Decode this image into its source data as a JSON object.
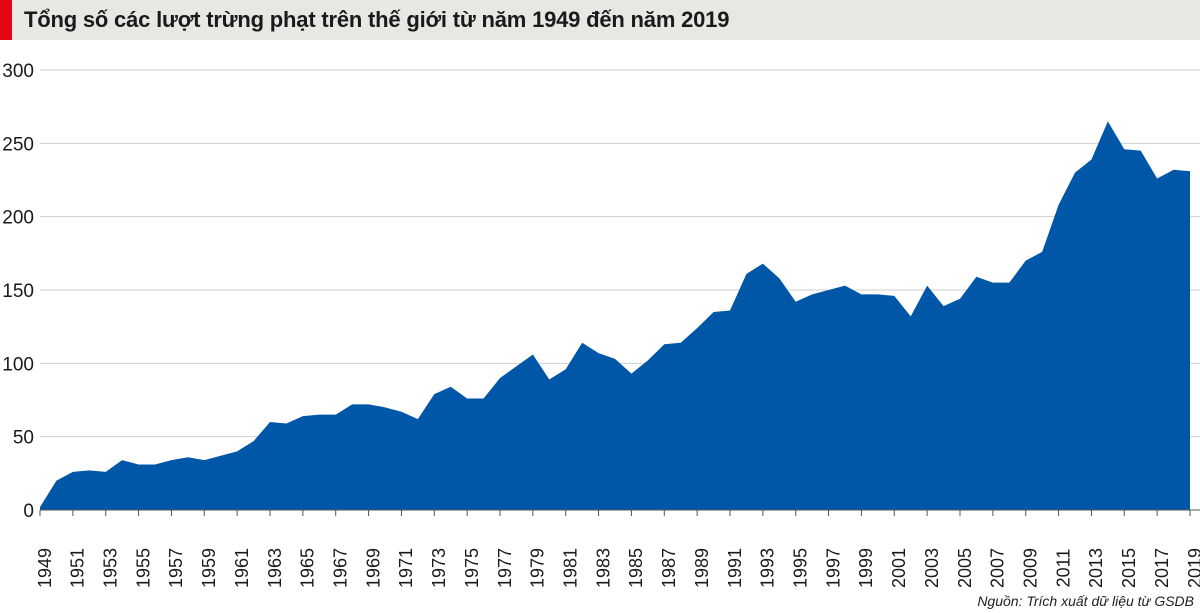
{
  "header": {
    "title": "Tổng số các lượt trừng phạt trên thế giới từ năm 1949 đến năm 2019"
  },
  "footer": {
    "source": "Nguồn: Trích xuất dữ liệu từ GSDB"
  },
  "colors": {
    "area_fill": "#0057a8",
    "title_accent": "#e30613",
    "title_background": "#e9e7e4",
    "gridline": "#cfcfcf"
  },
  "chart_data": {
    "type": "area",
    "title": "Tổng số các lượt trừng phạt trên thế giới từ năm 1949 đến năm 2019",
    "xlabel": "",
    "ylabel": "",
    "ylim": [
      0,
      300
    ],
    "yticks": [
      0,
      50,
      100,
      150,
      200,
      250,
      300
    ],
    "xlim": [
      1949,
      2019
    ],
    "xticks": [
      1949,
      1951,
      1953,
      1955,
      1957,
      1959,
      1961,
      1963,
      1965,
      1967,
      1969,
      1971,
      1973,
      1975,
      1977,
      1979,
      1981,
      1983,
      1985,
      1987,
      1989,
      1991,
      1993,
      1995,
      1997,
      1999,
      2001,
      2003,
      2005,
      2007,
      2009,
      2011,
      2013,
      2015,
      2017,
      2019
    ],
    "grid": "horizontal",
    "x": [
      1949,
      1950,
      1951,
      1952,
      1953,
      1954,
      1955,
      1956,
      1957,
      1958,
      1959,
      1960,
      1961,
      1962,
      1963,
      1964,
      1965,
      1966,
      1967,
      1968,
      1969,
      1970,
      1971,
      1972,
      1973,
      1974,
      1975,
      1976,
      1977,
      1978,
      1979,
      1980,
      1981,
      1982,
      1983,
      1984,
      1985,
      1986,
      1987,
      1988,
      1989,
      1990,
      1991,
      1992,
      1993,
      1994,
      1995,
      1996,
      1997,
      1998,
      1999,
      2000,
      2001,
      2002,
      2003,
      2004,
      2005,
      2006,
      2007,
      2008,
      2009,
      2010,
      2011,
      2012,
      2013,
      2014,
      2015,
      2016,
      2017,
      2018,
      2019
    ],
    "values": [
      2,
      20,
      26,
      27,
      26,
      34,
      31,
      31,
      34,
      36,
      34,
      37,
      40,
      47,
      60,
      59,
      64,
      65,
      65,
      72,
      72,
      70,
      67,
      62,
      79,
      84,
      76,
      76,
      90,
      98,
      106,
      89,
      96,
      114,
      107,
      103,
      93,
      102,
      113,
      114,
      124,
      135,
      136,
      161,
      168,
      158,
      142,
      147,
      150,
      153,
      147,
      147,
      146,
      132,
      153,
      139,
      144,
      159,
      155,
      155,
      170,
      176,
      208,
      230,
      239,
      265,
      246,
      245,
      226,
      232,
      231
    ]
  }
}
